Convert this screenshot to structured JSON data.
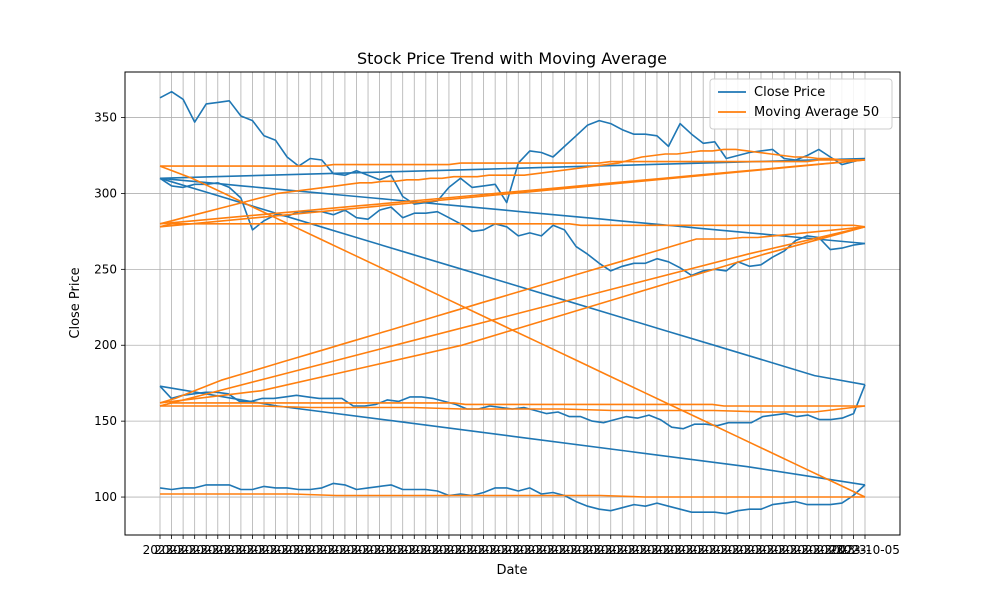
{
  "chart_data": {
    "type": "line",
    "title": "Stock Price Trend with Moving Average",
    "xlabel": "Date",
    "ylabel": "Close Price",
    "ylim": [
      75,
      380
    ],
    "yticks": [
      100,
      150,
      200,
      250,
      300,
      350
    ],
    "xtick_label_prefix": "2023-",
    "xtick_label_last": "2023-10-05",
    "grid": true,
    "legend_position": "top-right",
    "series": [
      {
        "name": "Close Price",
        "color": "#1f77b4",
        "segments": [
          [
            363,
            367,
            362,
            347,
            359,
            360,
            361,
            351,
            348,
            338,
            335,
            324,
            318,
            323,
            322,
            313,
            312,
            315,
            312,
            309,
            312,
            298,
            293,
            294,
            295,
            304,
            310,
            304,
            305,
            306,
            294,
            320,
            328,
            327,
            324,
            331,
            338,
            345,
            348,
            346,
            342,
            339,
            339,
            338,
            331,
            346,
            339,
            333,
            334,
            323,
            325,
            327,
            328,
            329,
            323,
            322,
            325,
            329,
            324,
            319,
            321,
            323
          ],
          [
            323,
            322,
            321,
            320,
            319,
            318,
            317,
            316,
            315,
            314,
            313,
            312,
            311,
            310
          ],
          [
            310,
            309,
            308,
            307,
            306,
            305,
            304,
            303,
            302,
            301,
            300,
            299,
            298,
            297,
            296,
            295,
            294,
            293,
            292,
            291,
            290,
            289,
            288,
            287,
            286,
            285,
            284,
            283,
            282,
            281,
            280,
            279,
            278,
            277,
            276,
            275,
            274,
            273,
            272,
            271,
            270,
            269,
            268,
            267
          ],
          [
            267,
            266,
            264,
            263,
            271,
            272,
            269,
            262,
            258,
            253,
            252,
            255,
            249,
            250,
            249,
            246,
            251,
            255,
            257,
            254,
            254,
            252,
            249,
            254,
            260,
            265,
            276,
            279,
            272,
            274,
            272,
            278,
            280,
            276,
            275,
            280,
            284,
            288,
            287,
            287,
            284,
            291,
            289,
            283,
            284,
            289,
            286,
            288,
            288,
            288,
            285,
            286,
            282,
            276,
            297,
            304,
            307,
            306,
            306,
            304,
            305,
            310
          ],
          [
            310,
            300,
            290,
            280,
            270,
            260,
            250,
            240,
            230,
            220,
            210,
            200,
            190,
            180,
            174
          ],
          [
            174,
            155,
            152,
            151,
            151,
            154,
            153,
            155,
            154,
            153,
            149,
            149,
            149,
            147,
            148,
            148,
            145,
            146,
            151,
            154,
            152,
            153,
            151,
            149,
            150,
            153,
            153,
            156,
            155,
            157,
            159,
            158,
            159,
            160,
            158,
            158,
            161,
            163,
            165,
            166,
            166,
            163,
            164,
            161,
            160,
            160,
            165,
            165,
            165,
            166,
            167,
            166,
            165,
            165,
            163,
            163,
            168,
            169,
            169,
            168,
            167,
            165,
            173
          ],
          [
            173,
            160,
            150,
            140,
            130,
            120,
            108
          ],
          [
            108,
            101,
            96,
            95,
            95,
            95,
            97,
            96,
            95,
            92,
            92,
            91,
            89,
            90,
            90,
            90,
            92,
            94,
            96,
            94,
            95,
            93,
            91,
            92,
            94,
            97,
            101,
            103,
            102,
            106,
            104,
            106,
            106,
            103,
            101,
            102,
            101,
            104,
            105,
            105,
            105,
            108,
            107,
            106,
            105,
            108,
            109,
            106,
            105,
            105,
            106,
            106,
            107,
            105,
            105,
            108,
            108,
            108,
            106,
            106,
            105,
            106
          ]
        ]
      },
      {
        "name": "Moving Average 50",
        "color": "#ff7f0e",
        "segments": [
          [
            318,
            318,
            318,
            318,
            318,
            318,
            318,
            318,
            318,
            318,
            318,
            318,
            318,
            318,
            318,
            319,
            319,
            319,
            319,
            319,
            319,
            319,
            319,
            319,
            319,
            319,
            320,
            320,
            320,
            320,
            320,
            320,
            320,
            320,
            320,
            320,
            320,
            320,
            320,
            321,
            321,
            321,
            321,
            321,
            321,
            321,
            321,
            321,
            321,
            321,
            321,
            321,
            321,
            321,
            321,
            321,
            321,
            322,
            322,
            322,
            322,
            322
          ],
          [
            322,
            320,
            318,
            316,
            314,
            312,
            310,
            308,
            306,
            304,
            302,
            300,
            298,
            296,
            294,
            292,
            290,
            288,
            286,
            284,
            282,
            280
          ],
          [
            280,
            282,
            284,
            286,
            288,
            290,
            292,
            294,
            296,
            298,
            300,
            301,
            302,
            303,
            304,
            305,
            306,
            307,
            307,
            308,
            308,
            309,
            309,
            310,
            310,
            311,
            311,
            311,
            312,
            312,
            312,
            312,
            313,
            314,
            315,
            316,
            317,
            318,
            319,
            320,
            322,
            324,
            325,
            326,
            326,
            327,
            328,
            328,
            329,
            329,
            328,
            327,
            326,
            325,
            324,
            324,
            323,
            323,
            322,
            322,
            322
          ],
          [
            322,
            300,
            278
          ],
          [
            278,
            280,
            280,
            280,
            280,
            280,
            280,
            280,
            280,
            280,
            280,
            280,
            280,
            280,
            280,
            280,
            280,
            280,
            280,
            280,
            280,
            280,
            280,
            280,
            280,
            280,
            280,
            280,
            280,
            280,
            280,
            280,
            280,
            280,
            280,
            280,
            280,
            279,
            279,
            279,
            279,
            279,
            279,
            279,
            279,
            279,
            279,
            279,
            279,
            279,
            279,
            279,
            279,
            279,
            279,
            279,
            279,
            279,
            279,
            279,
            279,
            279,
            278
          ],
          [
            278,
            260,
            240,
            220,
            200,
            185,
            170,
            162
          ],
          [
            162,
            165,
            169,
            173,
            177,
            180,
            183,
            186,
            189,
            192,
            195,
            198,
            201,
            204,
            207,
            210,
            213,
            216,
            219,
            222,
            225,
            228,
            231,
            234,
            237,
            240,
            243,
            246,
            249,
            252,
            255,
            258,
            261,
            264,
            267,
            270,
            270,
            270,
            271,
            271,
            272,
            273,
            274,
            275,
            276,
            277,
            278
          ],
          [
            278,
            260,
            240,
            220,
            200,
            180,
            160
          ],
          [
            160,
            162,
            162,
            162,
            162,
            162,
            162,
            162,
            162,
            162,
            162,
            162,
            162,
            162,
            162,
            162,
            162,
            162,
            162,
            162,
            162,
            162,
            162,
            162,
            162,
            162,
            161,
            161,
            161,
            161,
            161,
            161,
            161,
            161,
            161,
            161,
            161,
            161,
            161,
            161,
            161,
            161,
            161,
            161,
            161,
            161,
            161,
            161,
            160,
            160,
            160,
            160,
            160,
            160,
            160,
            160,
            160,
            160,
            160,
            160,
            160
          ],
          [
            160,
            156,
            156,
            157,
            157,
            157,
            158,
            158,
            158,
            159,
            159,
            159,
            160,
            160,
            160
          ],
          [
            318,
            310,
            300,
            290,
            280,
            270,
            260,
            250,
            240,
            230,
            220,
            210,
            200,
            190,
            180,
            170,
            160,
            150,
            140,
            130,
            120,
            110,
            100
          ],
          [
            100,
            100,
            100,
            100,
            100,
            100,
            101,
            101,
            101,
            101,
            101,
            101,
            101,
            102,
            102,
            102,
            102
          ]
        ]
      }
    ]
  }
}
